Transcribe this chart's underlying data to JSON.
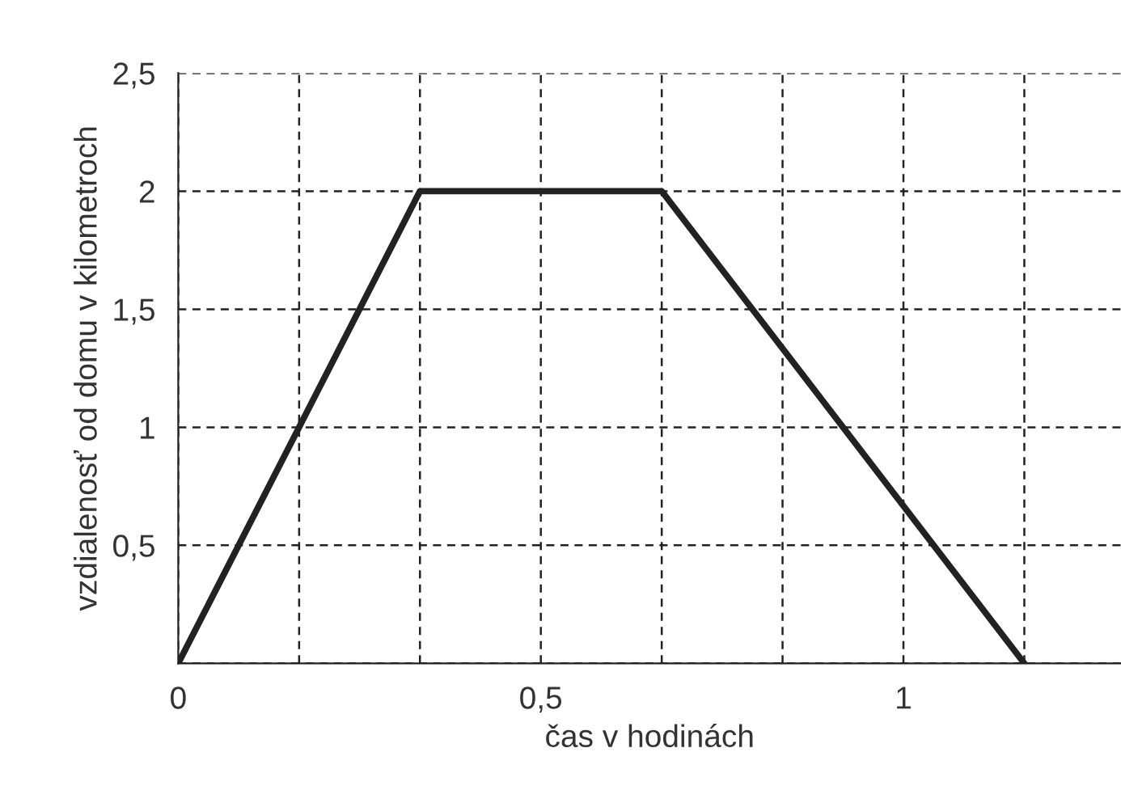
{
  "chart_data": {
    "type": "line",
    "xlabel": "čas v hodinách",
    "ylabel": "vzdialenosť od domu v kilometroch",
    "x": [
      0,
      0.3333,
      0.6667,
      1.1667
    ],
    "series": [
      {
        "color": "#222222",
        "values": [
          0,
          2,
          2,
          0
        ]
      }
    ],
    "xlim": [
      0,
      1.3
    ],
    "ylim": [
      0,
      2.5
    ],
    "xticks": [
      0,
      {
        "value": 0.1667,
        "label": null
      },
      {
        "value": 0.3333,
        "label": null
      },
      {
        "value": 0.5,
        "label": "0,5"
      },
      {
        "value": 0.6667,
        "label": null
      },
      {
        "value": 0.8333,
        "label": null
      },
      1,
      {
        "value": 1.1667,
        "label": null
      }
    ],
    "yticks": [
      {
        "value": 0,
        "label": null
      },
      {
        "value": 0.5,
        "label": "0,5"
      },
      1,
      {
        "value": 1.5,
        "label": "1,5"
      },
      2,
      {
        "value": 2.5,
        "label": "2,5"
      }
    ],
    "grid": true,
    "legend": false,
    "marker": "none",
    "line_style": "solid"
  }
}
